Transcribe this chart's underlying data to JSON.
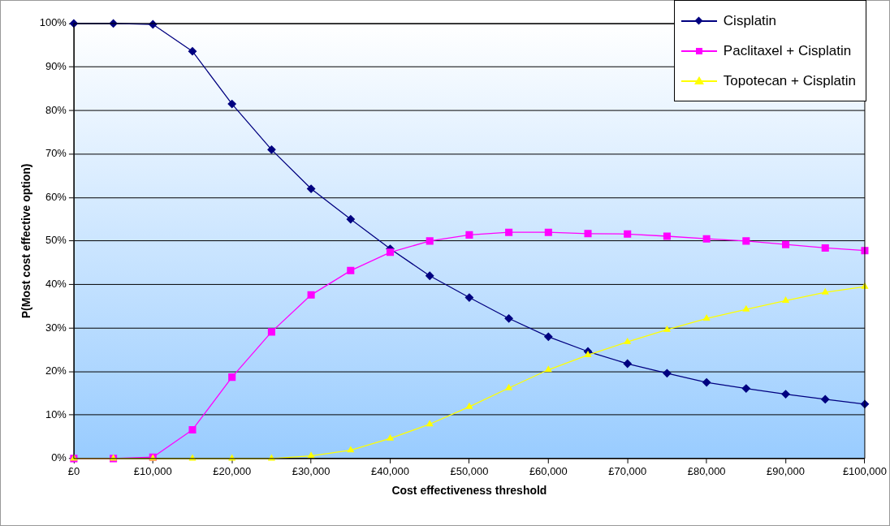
{
  "chart_data": {
    "type": "line",
    "xlabel": "Cost effectiveness threshold",
    "ylabel": "P(Most cost effective option)",
    "x": [
      0,
      5000,
      10000,
      15000,
      20000,
      25000,
      30000,
      35000,
      40000,
      45000,
      50000,
      55000,
      60000,
      65000,
      70000,
      75000,
      80000,
      85000,
      90000,
      95000,
      100000
    ],
    "series": [
      {
        "name": "Cisplatin",
        "color": "#000080",
        "marker": "diamond",
        "values": [
          100,
          100,
          99.8,
          93.6,
          81.5,
          71,
          62,
          55,
          48.2,
          42,
          37,
          32.2,
          28,
          24.6,
          21.8,
          19.6,
          17.5,
          16.1,
          14.8,
          13.6,
          12.5
        ]
      },
      {
        "name": "Paclitaxel + Cisplatin",
        "color": "#ff00ff",
        "marker": "square",
        "values": [
          0,
          0,
          0.3,
          6.6,
          18.7,
          29.1,
          37.6,
          43.2,
          47.4,
          50,
          51.4,
          52,
          52,
          51.7,
          51.6,
          51.1,
          50.5,
          50,
          49.2,
          48.4,
          47.8
        ]
      },
      {
        "name": "Topotecan + Cisplatin",
        "color": "#ffff00",
        "marker": "triangle",
        "values": [
          0,
          0,
          0,
          0,
          0,
          0,
          0.6,
          1.9,
          4.6,
          7.9,
          11.9,
          16.2,
          20.4,
          23.8,
          26.8,
          29.6,
          32.2,
          34.3,
          36.3,
          38.2,
          39.5
        ]
      }
    ],
    "xlim": [
      0,
      100000
    ],
    "xticks": [
      {
        "value": 0,
        "label": "£0"
      },
      {
        "value": 10000,
        "label": "£10,000"
      },
      {
        "value": 20000,
        "label": "£20,000"
      },
      {
        "value": 30000,
        "label": "£30,000"
      },
      {
        "value": 40000,
        "label": "£40,000"
      },
      {
        "value": 50000,
        "label": "£50,000"
      },
      {
        "value": 60000,
        "label": "£60,000"
      },
      {
        "value": 70000,
        "label": "£70,000"
      },
      {
        "value": 80000,
        "label": "£80,000"
      },
      {
        "value": 90000,
        "label": "£90,000"
      },
      {
        "value": 100000,
        "label": "£100,000"
      }
    ],
    "ylim": [
      0,
      100
    ],
    "yticks": [
      {
        "value": 0,
        "label": "0%"
      },
      {
        "value": 10,
        "label": "10%"
      },
      {
        "value": 20,
        "label": "20%"
      },
      {
        "value": 30,
        "label": "30%"
      },
      {
        "value": 40,
        "label": "40%"
      },
      {
        "value": 50,
        "label": "50%"
      },
      {
        "value": 60,
        "label": "60%"
      },
      {
        "value": 70,
        "label": "70%"
      },
      {
        "value": 80,
        "label": "80%"
      },
      {
        "value": 90,
        "label": "90%"
      },
      {
        "value": 100,
        "label": "100%"
      }
    ],
    "grid": "y",
    "legend": "top right"
  }
}
